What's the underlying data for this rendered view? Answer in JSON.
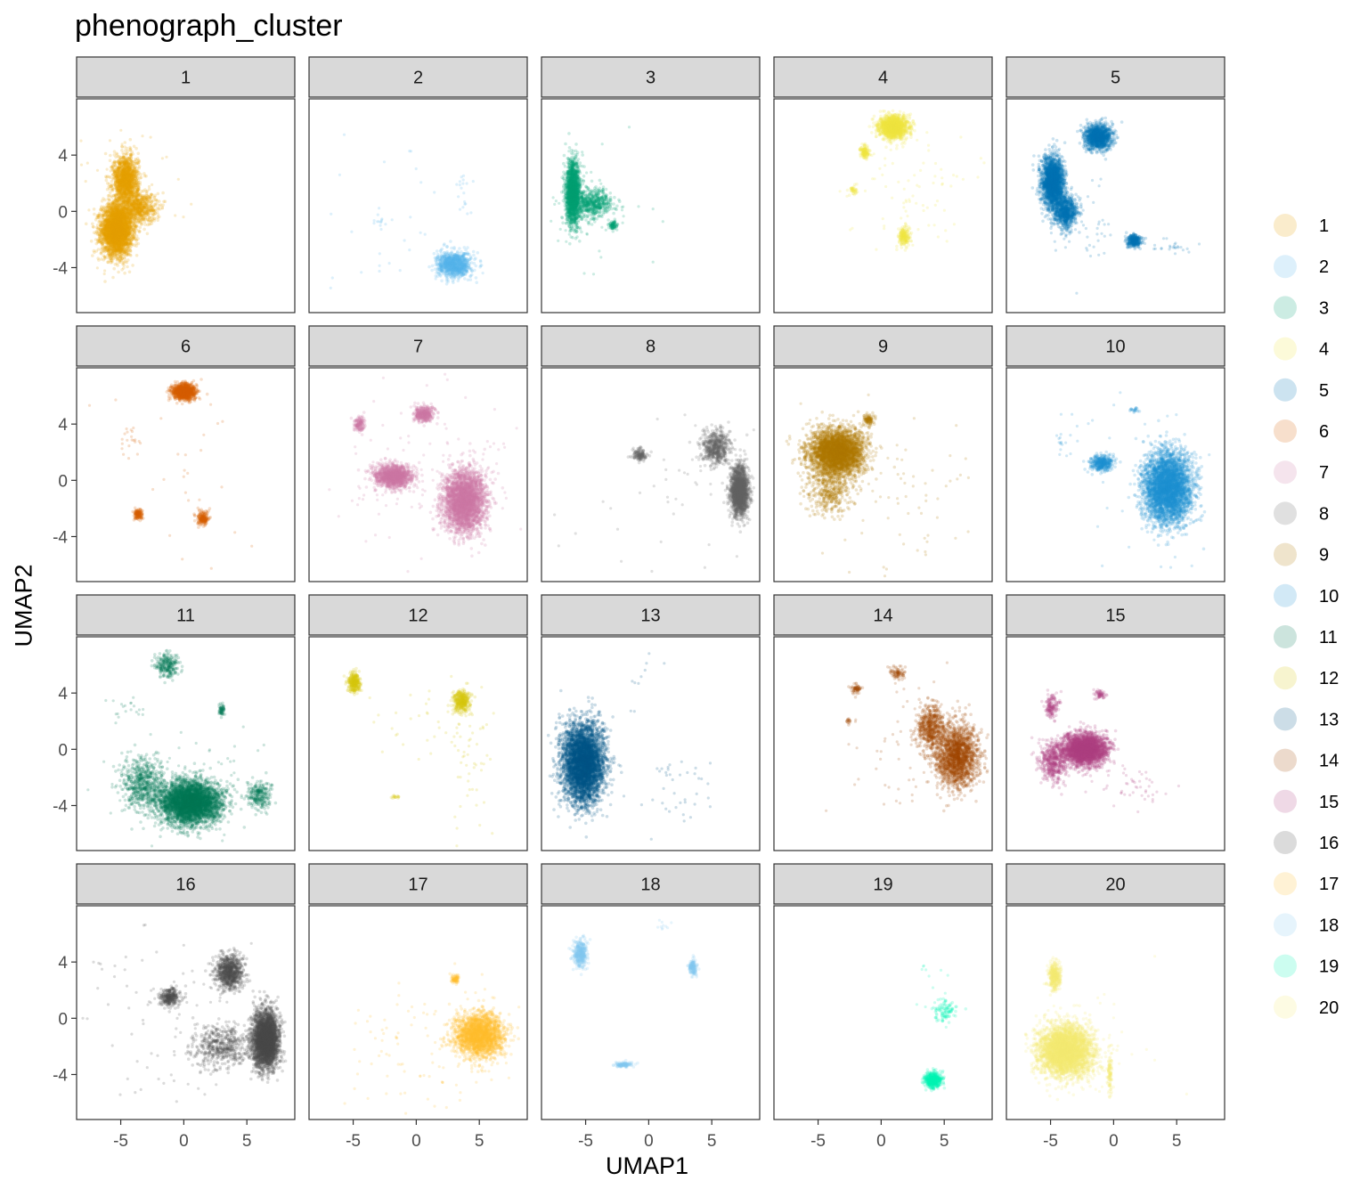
{
  "chart_data": {
    "type": "scatter",
    "title": "phenograph_cluster",
    "xlabel": "UMAP1",
    "ylabel": "UMAP2",
    "facet_by": "phenograph_cluster",
    "facet_layout": "5 columns x 4 rows",
    "xlim": [
      -8.5,
      8.8
    ],
    "ylim": [
      -7.2,
      8.0
    ],
    "x_ticks": [
      -5,
      0,
      5
    ],
    "x_tick_labels": [
      "-5",
      "0",
      "5"
    ],
    "y_ticks": [
      -4,
      0,
      4
    ],
    "y_tick_labels": [
      "-4",
      "0",
      "4"
    ],
    "grid": false,
    "legend": {
      "position": "right",
      "title": "",
      "alpha": 0.2
    },
    "point_alpha": 0.2,
    "panels": [
      {
        "name": "1",
        "color": "#E69F00",
        "clusters": [
          [
            -5.3,
            -1.3,
            1.1,
            1.6,
            3500
          ],
          [
            -4.6,
            2.2,
            0.9,
            1.6,
            1500
          ],
          [
            -3.6,
            0.3,
            1.3,
            1.0,
            700
          ]
        ],
        "scatter": [
          [
            -4.5,
            0.5,
            2.8,
            2.6,
            60
          ]
        ]
      },
      {
        "name": "2",
        "color": "#56B4E9",
        "clusters": [
          [
            3.0,
            -3.8,
            1.2,
            0.8,
            1000
          ]
        ],
        "scatter": [
          [
            -3.0,
            -0.9,
            0.3,
            0.3,
            12
          ],
          [
            3.6,
            2.0,
            0.2,
            0.4,
            10
          ],
          [
            3.8,
            0.4,
            0.3,
            0.5,
            8
          ],
          [
            0.0,
            -1.5,
            4.0,
            3.0,
            30
          ]
        ]
      },
      {
        "name": "3",
        "color": "#009E73",
        "clusters": [
          [
            -6.0,
            1.3,
            0.5,
            2.0,
            1800
          ],
          [
            -4.5,
            0.6,
            1.4,
            0.9,
            600
          ],
          [
            -2.8,
            -1.0,
            0.3,
            0.3,
            80
          ]
        ],
        "scatter": [
          [
            -5.0,
            0.0,
            2.5,
            2.5,
            50
          ]
        ]
      },
      {
        "name": "4",
        "color": "#F0E442",
        "clusters": [
          [
            1.0,
            6.0,
            1.0,
            0.7,
            1600
          ],
          [
            -1.3,
            4.2,
            0.3,
            0.4,
            150
          ],
          [
            1.8,
            -1.8,
            0.4,
            0.6,
            200
          ],
          [
            -2.2,
            1.5,
            0.3,
            0.3,
            40
          ]
        ],
        "scatter": [
          [
            2.5,
            1.5,
            2.5,
            2.0,
            80
          ]
        ]
      },
      {
        "name": "5",
        "color": "#0072B2",
        "clusters": [
          [
            -4.8,
            2.0,
            0.8,
            1.7,
            2200
          ],
          [
            -3.8,
            0.0,
            0.8,
            1.0,
            800
          ],
          [
            -1.2,
            5.3,
            1.0,
            0.8,
            1200
          ],
          [
            1.6,
            -2.1,
            0.5,
            0.4,
            300
          ]
        ],
        "scatter": [
          [
            -3.0,
            -1.5,
            1.5,
            1.5,
            50
          ],
          [
            4.5,
            -2.4,
            0.9,
            0.3,
            25
          ]
        ]
      },
      {
        "name": "6",
        "color": "#D55E00",
        "clusters": [
          [
            0.0,
            6.3,
            0.8,
            0.5,
            1200
          ],
          [
            1.5,
            -2.7,
            0.4,
            0.5,
            200
          ],
          [
            -3.6,
            -2.4,
            0.3,
            0.3,
            150
          ]
        ],
        "scatter": [
          [
            -4.2,
            2.8,
            0.4,
            0.6,
            20
          ],
          [
            0.0,
            0.0,
            4.0,
            3.5,
            25
          ]
        ]
      },
      {
        "name": "7",
        "color": "#CC79A7",
        "clusters": [
          [
            3.8,
            -1.5,
            1.5,
            2.0,
            3000
          ],
          [
            -1.8,
            0.3,
            1.3,
            0.7,
            1400
          ],
          [
            0.6,
            4.7,
            0.7,
            0.5,
            400
          ],
          [
            -4.5,
            4.0,
            0.4,
            0.5,
            150
          ]
        ],
        "scatter": [
          [
            0.5,
            0.5,
            4.0,
            3.0,
            120
          ]
        ]
      },
      {
        "name": "8",
        "color": "#666666",
        "clusters": [
          [
            7.2,
            -0.8,
            0.6,
            1.5,
            2000
          ],
          [
            5.4,
            2.3,
            1.0,
            1.1,
            600
          ],
          [
            -0.7,
            1.8,
            0.5,
            0.4,
            150
          ]
        ],
        "scatter": [
          [
            3.0,
            0.0,
            4.0,
            3.0,
            50
          ]
        ]
      },
      {
        "name": "9",
        "color": "#AD7700",
        "clusters": [
          [
            -3.5,
            2.0,
            2.0,
            1.5,
            3500
          ],
          [
            -4.0,
            -0.8,
            1.5,
            1.5,
            400
          ],
          [
            -1.0,
            4.3,
            0.4,
            0.4,
            100
          ]
        ],
        "scatter": [
          [
            0.0,
            -1.0,
            3.5,
            3.0,
            80
          ]
        ]
      },
      {
        "name": "10",
        "color": "#1C91D4",
        "clusters": [
          [
            4.3,
            -0.5,
            1.7,
            2.2,
            4000
          ],
          [
            -0.9,
            1.2,
            0.8,
            0.5,
            400
          ],
          [
            1.7,
            5.0,
            0.4,
            0.2,
            20
          ]
        ],
        "scatter": [
          [
            -4.5,
            3.0,
            1.0,
            1.0,
            20
          ],
          [
            2.0,
            0.0,
            3.5,
            3.5,
            40
          ]
        ]
      },
      {
        "name": "11",
        "color": "#007756",
        "clusters": [
          [
            0.5,
            -3.8,
            2.2,
            1.4,
            4000
          ],
          [
            -3.3,
            -2.5,
            1.5,
            1.7,
            600
          ],
          [
            -1.3,
            6.0,
            0.8,
            0.8,
            250
          ],
          [
            3.0,
            2.8,
            0.2,
            0.4,
            60
          ],
          [
            6.0,
            -3.3,
            0.8,
            0.9,
            250
          ]
        ],
        "scatter": [
          [
            -4.5,
            3.0,
            0.8,
            0.5,
            20
          ],
          [
            0.0,
            -2.0,
            4.0,
            2.0,
            60
          ]
        ]
      },
      {
        "name": "12",
        "color": "#D5C711",
        "clusters": [
          [
            -4.9,
            4.7,
            0.4,
            0.6,
            350
          ],
          [
            3.6,
            3.4,
            0.6,
            0.7,
            400
          ],
          [
            -1.6,
            -3.4,
            0.3,
            0.1,
            15
          ]
        ],
        "scatter": [
          [
            4.0,
            0.0,
            1.0,
            2.5,
            60
          ],
          [
            -1.0,
            2.0,
            2.5,
            1.5,
            25
          ]
        ]
      },
      {
        "name": "13",
        "color": "#005685",
        "clusters": [
          [
            -5.2,
            -1.0,
            1.5,
            2.5,
            4500
          ]
        ],
        "scatter": [
          [
            2.0,
            -3.0,
            1.5,
            1.5,
            40
          ],
          [
            -0.5,
            4.5,
            0.8,
            1.0,
            10
          ]
        ]
      },
      {
        "name": "14",
        "color": "#A04700",
        "clusters": [
          [
            6.0,
            -0.5,
            1.5,
            2.0,
            1800
          ],
          [
            4.0,
            1.5,
            1.0,
            1.5,
            600
          ],
          [
            1.3,
            5.4,
            0.5,
            0.4,
            80
          ],
          [
            -2.0,
            4.3,
            0.4,
            0.3,
            60
          ],
          [
            -2.6,
            2.0,
            0.2,
            0.2,
            15
          ]
        ],
        "scatter": [
          [
            2.5,
            0.0,
            3.0,
            2.5,
            60
          ]
        ]
      },
      {
        "name": "15",
        "color": "#B14380",
        "clusters": [
          [
            -2.3,
            0.0,
            1.5,
            1.0,
            3000
          ],
          [
            -4.8,
            -0.8,
            1.0,
            1.3,
            500
          ],
          [
            -4.9,
            3.0,
            0.5,
            0.8,
            150
          ],
          [
            -1.1,
            3.9,
            0.4,
            0.3,
            60
          ]
        ],
        "scatter": [
          [
            1.5,
            -2.5,
            1.5,
            0.8,
            50
          ]
        ]
      },
      {
        "name": "16",
        "color": "#4D4D4D",
        "clusters": [
          [
            6.5,
            -1.5,
            0.9,
            1.8,
            3500
          ],
          [
            3.6,
            3.3,
            1.0,
            1.1,
            800
          ],
          [
            -1.1,
            1.5,
            0.7,
            0.6,
            300
          ],
          [
            3.0,
            -2.0,
            2.0,
            1.3,
            500
          ]
        ],
        "scatter": [
          [
            0.0,
            0.0,
            4.5,
            3.5,
            120
          ]
        ]
      },
      {
        "name": "17",
        "color": "#FFBE2D",
        "clusters": [
          [
            5.0,
            -1.2,
            1.7,
            1.4,
            2200
          ],
          [
            3.1,
            2.8,
            0.3,
            0.3,
            80
          ]
        ],
        "scatter": [
          [
            1.0,
            -2.0,
            3.5,
            2.5,
            120
          ]
        ]
      },
      {
        "name": "18",
        "color": "#80C7EF",
        "clusters": [
          [
            -5.4,
            4.6,
            0.5,
            0.8,
            400
          ],
          [
            3.5,
            3.6,
            0.3,
            0.5,
            150
          ],
          [
            -2.0,
            -3.3,
            0.6,
            0.15,
            120
          ]
        ],
        "scatter": [
          [
            1.0,
            6.5,
            0.5,
            0.3,
            10
          ]
        ]
      },
      {
        "name": "19",
        "color": "#00F6B3",
        "clusters": [
          [
            4.1,
            -4.4,
            0.6,
            0.5,
            500
          ],
          [
            5.0,
            0.5,
            0.8,
            0.7,
            100
          ]
        ],
        "scatter": [
          [
            4.0,
            2.0,
            0.8,
            1.5,
            15
          ]
        ]
      },
      {
        "name": "20",
        "color": "#F4EB71",
        "clusters": [
          [
            -3.8,
            -2.3,
            1.9,
            1.6,
            4000
          ],
          [
            -4.7,
            3.0,
            0.4,
            0.9,
            400
          ],
          [
            -0.3,
            -4.0,
            0.2,
            1.2,
            100
          ]
        ],
        "scatter": [
          [
            -2.0,
            -2.0,
            2.5,
            2.5,
            60
          ]
        ]
      }
    ]
  }
}
